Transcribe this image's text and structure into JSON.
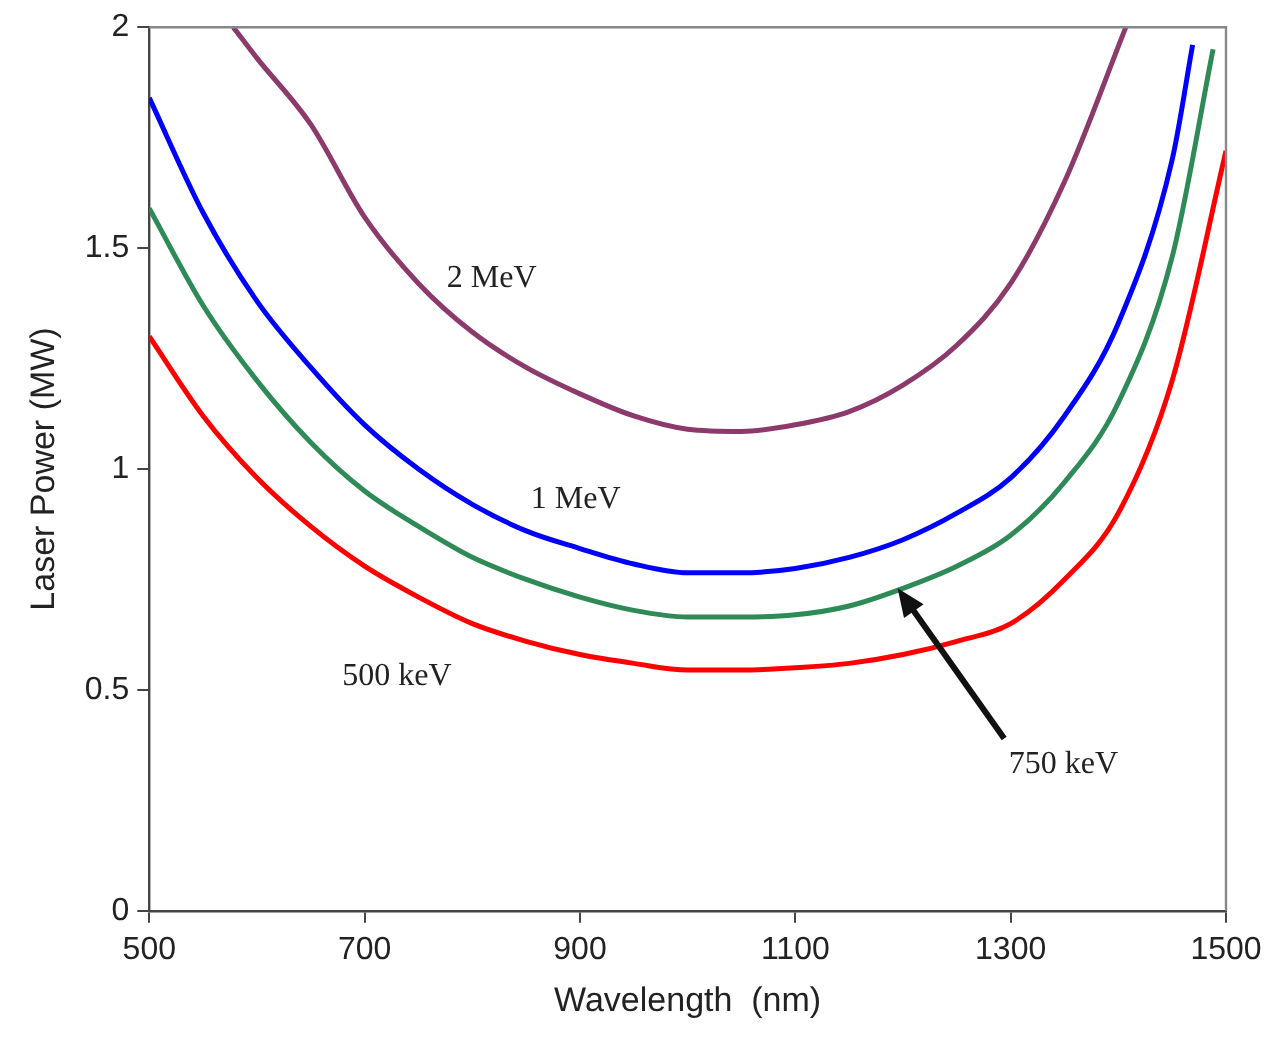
{
  "chart_data": {
    "type": "line",
    "xlabel": "Wavelength  (nm)",
    "ylabel": "Laser Power (MW)",
    "xlim": [
      500,
      1500
    ],
    "xticks": [
      500,
      700,
      900,
      1100,
      1300,
      1500
    ],
    "ylim": [
      0,
      2
    ],
    "yticks": [
      0,
      0.5,
      1,
      1.5,
      2
    ],
    "grid": false,
    "legend": false,
    "marker": "none",
    "line_style": "solid",
    "series": [
      {
        "name": "2 MeV",
        "color": "#8b3a6b",
        "x": [
          578,
          600,
          650,
          700,
          750,
          800,
          850,
          900,
          950,
          1000,
          1050,
          1100,
          1150,
          1200,
          1250,
          1300,
          1350,
          1407
        ],
        "values": [
          2.0,
          1.93,
          1.78,
          1.57,
          1.42,
          1.31,
          1.23,
          1.17,
          1.12,
          1.09,
          1.085,
          1.1,
          1.13,
          1.19,
          1.28,
          1.42,
          1.65,
          2.0
        ]
      },
      {
        "name": "1 MeV",
        "color": "#0000ff",
        "x": [
          500,
          550,
          600,
          650,
          700,
          750,
          800,
          850,
          900,
          950,
          1000,
          1050,
          1100,
          1150,
          1200,
          1250,
          1300,
          1350,
          1400,
          1450,
          1469
        ],
        "values": [
          1.84,
          1.58,
          1.38,
          1.23,
          1.1,
          1.0,
          0.92,
          0.86,
          0.82,
          0.785,
          0.765,
          0.765,
          0.775,
          0.8,
          0.84,
          0.9,
          0.98,
          1.12,
          1.33,
          1.7,
          1.96
        ]
      },
      {
        "name": "750 keV",
        "color": "#2e8b57",
        "x": [
          500,
          550,
          600,
          650,
          700,
          750,
          800,
          850,
          900,
          950,
          1000,
          1050,
          1100,
          1150,
          1200,
          1250,
          1300,
          1350,
          1400,
          1450,
          1488
        ],
        "values": [
          1.59,
          1.37,
          1.2,
          1.06,
          0.95,
          0.87,
          0.8,
          0.75,
          0.71,
          0.68,
          0.665,
          0.665,
          0.67,
          0.69,
          0.73,
          0.78,
          0.85,
          0.97,
          1.15,
          1.48,
          1.95
        ]
      },
      {
        "name": "500 keV",
        "color": "#ff0000",
        "x": [
          500,
          550,
          600,
          650,
          700,
          750,
          800,
          850,
          900,
          950,
          1000,
          1050,
          1100,
          1150,
          1200,
          1250,
          1300,
          1350,
          1400,
          1450,
          1500
        ],
        "values": [
          1.3,
          1.12,
          0.98,
          0.87,
          0.78,
          0.71,
          0.65,
          0.61,
          0.58,
          0.56,
          0.545,
          0.545,
          0.55,
          0.56,
          0.58,
          0.61,
          0.65,
          0.75,
          0.9,
          1.2,
          1.72
        ]
      }
    ]
  }
}
